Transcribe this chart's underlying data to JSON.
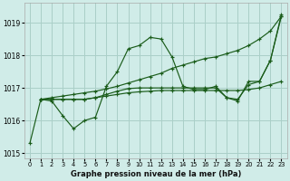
{
  "title": "Graphe pression niveau de la mer (hPa)",
  "bg_color": "#d0ece8",
  "grid_color": "#aacfc8",
  "line_color": "#1a5c1a",
  "xlim": [
    -0.5,
    23.5
  ],
  "ylim": [
    1014.85,
    1019.6
  ],
  "yticks": [
    1015,
    1016,
    1017,
    1018,
    1019
  ],
  "xticks": [
    0,
    1,
    2,
    3,
    4,
    5,
    6,
    7,
    8,
    9,
    10,
    11,
    12,
    13,
    14,
    15,
    16,
    17,
    18,
    19,
    20,
    21,
    22,
    23
  ],
  "series": [
    {
      "x": [
        0,
        1,
        2,
        3,
        4,
        5,
        6,
        7,
        8,
        9,
        10,
        11,
        12,
        13,
        14,
        15,
        16,
        17,
        18,
        19,
        20,
        21,
        22,
        23
      ],
      "y": [
        1015.3,
        1016.65,
        1016.6,
        1016.15,
        1015.75,
        1016.0,
        1016.1,
        1017.05,
        1017.5,
        1018.2,
        1018.3,
        1018.55,
        1018.5,
        1017.95,
        1017.05,
        1016.95,
        1016.95,
        1017.05,
        1016.7,
        1016.6,
        1017.2,
        1017.2,
        1017.85,
        1019.25
      ]
    },
    {
      "x": [
        1,
        2,
        3,
        4,
        5,
        6,
        7,
        8,
        9,
        10,
        11,
        12,
        13,
        14,
        15,
        16,
        17,
        18,
        19,
        20,
        21,
        22,
        23
      ],
      "y": [
        1016.65,
        1016.7,
        1016.75,
        1016.8,
        1016.85,
        1016.9,
        1016.97,
        1017.05,
        1017.15,
        1017.25,
        1017.35,
        1017.45,
        1017.6,
        1017.7,
        1017.8,
        1017.9,
        1017.95,
        1018.05,
        1018.15,
        1018.3,
        1018.5,
        1018.75,
        1019.2
      ]
    },
    {
      "x": [
        1,
        2,
        3,
        4,
        5,
        6,
        7,
        8,
        9,
        10,
        11,
        12,
        13,
        14,
        15,
        16,
        17,
        18,
        19,
        20,
        21,
        22,
        23
      ],
      "y": [
        1016.65,
        1016.65,
        1016.65,
        1016.65,
        1016.65,
        1016.7,
        1016.75,
        1016.8,
        1016.85,
        1016.88,
        1016.9,
        1016.92,
        1016.92,
        1016.92,
        1016.92,
        1016.92,
        1016.92,
        1016.92,
        1016.92,
        1016.95,
        1017.0,
        1017.1,
        1017.2
      ]
    },
    {
      "x": [
        1,
        2,
        3,
        4,
        5,
        6,
        7,
        8,
        9,
        10,
        11,
        12,
        13,
        14,
        15,
        16,
        17,
        18,
        19,
        20,
        21,
        22,
        23
      ],
      "y": [
        1016.65,
        1016.65,
        1016.65,
        1016.65,
        1016.65,
        1016.7,
        1016.8,
        1016.9,
        1016.98,
        1017.0,
        1017.0,
        1017.0,
        1017.0,
        1017.0,
        1017.0,
        1017.0,
        1017.0,
        1016.7,
        1016.65,
        1017.1,
        1017.2,
        1017.85,
        1019.2
      ]
    }
  ]
}
